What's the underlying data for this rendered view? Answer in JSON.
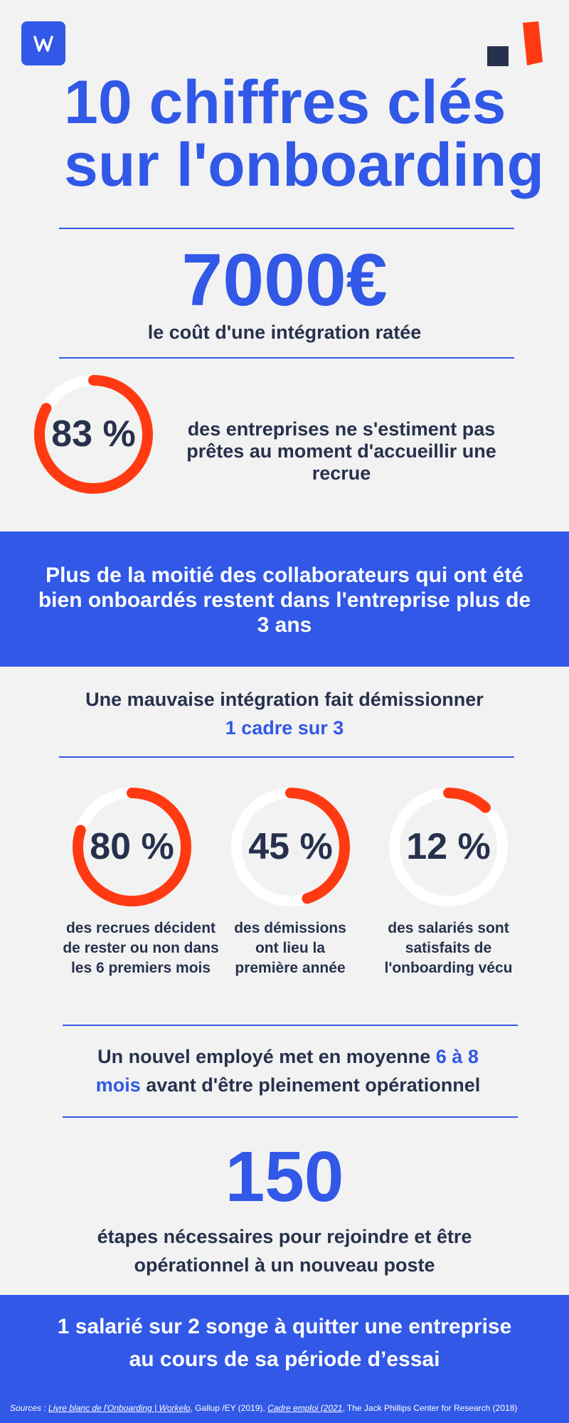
{
  "logo": {
    "letter": "W"
  },
  "title": {
    "line1": "10 chiffres clés",
    "line2": "sur l'onboarding"
  },
  "stat_cost": {
    "value": "7000€",
    "label": "le coût d'une intégration ratée"
  },
  "stat_83": {
    "value": "83 %",
    "percent": 83,
    "text": "des entreprises ne s'estiment pas prêtes au moment d'accueillir une recrue"
  },
  "banner_1": {
    "text": "Plus de la moitié des collaborateurs qui ont été bien onboardés restent dans l'entreprise plus de 3 ans"
  },
  "resign": {
    "line1": "Une mauvaise intégration fait démissionner",
    "line2": "1 cadre sur 3"
  },
  "rings": [
    {
      "value": "80 %",
      "percent": 80,
      "caption": "des recrues décident de rester ou non dans les 6 premiers mois"
    },
    {
      "value": "45 %",
      "percent": 45,
      "caption": "des démissions ont lieu la première année"
    },
    {
      "value": "12 %",
      "percent": 12,
      "caption": "des salariés sont satisfaits de l'onboarding vécu"
    }
  ],
  "ramp": {
    "part1": "Un nouvel employé met en moyenne ",
    "highlight": "6 à 8 mois",
    "part2": " avant d'être pleinement opérationnel"
  },
  "stat_150": {
    "value": "150",
    "label": "étapes nécessaires pour rejoindre et être opérationnel à un nouveau poste"
  },
  "banner_2": {
    "text": "1 salarié sur 2 songe à quitter une entreprise au cours de sa période d’essai"
  },
  "sources": {
    "prefix": "Sources : ",
    "link1": "Livre blanc de l'Onboarding | Workelo",
    "sep1": ", Gallup /EY (2019), ",
    "link2": "Cadre emploi (2021",
    "sep2": ", The Jack Phillips Center for Research (2018)"
  },
  "colors": {
    "accent": "#3158e6",
    "ring": "#ff3a12",
    "dark": "#27314d",
    "background": "#f2f2f2"
  }
}
